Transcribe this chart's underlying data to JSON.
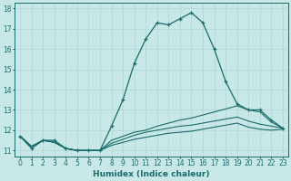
{
  "xlabel": "Humidex (Indice chaleur)",
  "xlim": [
    -0.5,
    23.5
  ],
  "ylim": [
    10.7,
    18.3
  ],
  "yticks": [
    11,
    12,
    13,
    14,
    15,
    16,
    17,
    18
  ],
  "xticks": [
    0,
    1,
    2,
    3,
    4,
    5,
    6,
    7,
    8,
    9,
    10,
    11,
    12,
    13,
    14,
    15,
    16,
    17,
    18,
    19,
    20,
    21,
    22,
    23
  ],
  "bg_color": "#c8e8e8",
  "line_color": "#1a6b6b",
  "grid_color": "#b0d4d4",
  "line1_x": [
    0,
    1,
    2,
    3,
    4,
    5,
    6,
    7,
    8,
    9,
    10,
    11,
    12,
    13,
    14,
    15,
    16,
    17,
    18,
    19,
    20,
    21,
    22,
    23
  ],
  "line1_y": [
    11.7,
    11.1,
    11.5,
    11.5,
    11.1,
    11.0,
    11.0,
    11.0,
    12.2,
    13.5,
    15.3,
    16.5,
    17.3,
    17.2,
    17.5,
    17.8,
    17.3,
    16.0,
    14.4,
    13.3,
    13.0,
    13.0,
    12.5,
    12.1
  ],
  "line2_x": [
    0,
    1,
    2,
    3,
    4,
    5,
    6,
    7,
    8,
    9,
    10,
    11,
    12,
    13,
    14,
    15,
    16,
    17,
    18,
    19,
    20,
    21,
    22,
    23
  ],
  "line2_y": [
    11.7,
    11.2,
    11.5,
    11.4,
    11.1,
    11.0,
    11.0,
    11.0,
    11.5,
    11.7,
    11.9,
    12.0,
    12.2,
    12.35,
    12.5,
    12.6,
    12.75,
    12.9,
    13.05,
    13.2,
    13.0,
    12.9,
    12.4,
    12.1
  ],
  "line3_x": [
    0,
    1,
    2,
    3,
    4,
    5,
    6,
    7,
    8,
    9,
    10,
    11,
    12,
    13,
    14,
    15,
    16,
    17,
    18,
    19,
    20,
    21,
    22,
    23
  ],
  "line3_y": [
    11.7,
    11.2,
    11.5,
    11.4,
    11.1,
    11.0,
    11.0,
    11.0,
    11.35,
    11.55,
    11.75,
    11.9,
    12.0,
    12.1,
    12.2,
    12.25,
    12.35,
    12.45,
    12.55,
    12.65,
    12.45,
    12.3,
    12.2,
    12.1
  ],
  "line4_x": [
    0,
    1,
    2,
    3,
    4,
    5,
    6,
    7,
    8,
    9,
    10,
    11,
    12,
    13,
    14,
    15,
    16,
    17,
    18,
    19,
    20,
    21,
    22,
    23
  ],
  "line4_y": [
    11.7,
    11.2,
    11.5,
    11.4,
    11.1,
    11.0,
    11.0,
    11.0,
    11.25,
    11.4,
    11.55,
    11.65,
    11.75,
    11.85,
    11.9,
    11.95,
    12.05,
    12.15,
    12.25,
    12.35,
    12.15,
    12.05,
    12.0,
    12.05
  ]
}
